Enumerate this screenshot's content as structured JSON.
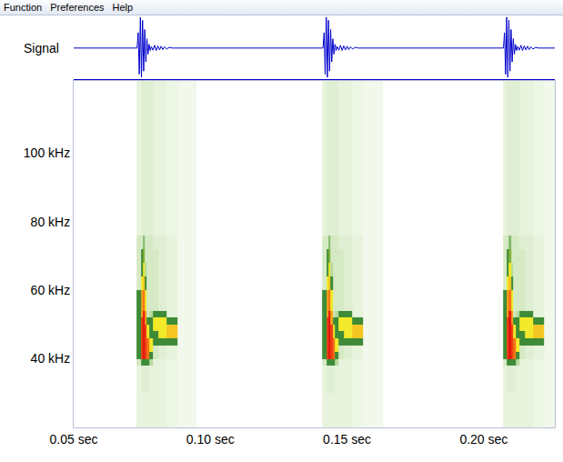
{
  "menu": [
    "Function",
    "Preferences",
    "Help"
  ],
  "chart_data": [
    {
      "type": "line",
      "ylabel": "Signal",
      "color": "#0000cc",
      "tick_labels": false,
      "xlim": [
        0.05,
        0.226
      ],
      "ylim": [
        -1,
        1
      ],
      "x": [
        0.05,
        0.0732,
        0.0736,
        0.074,
        0.0744,
        0.0748,
        0.0752,
        0.0756,
        0.076,
        0.0764,
        0.0768,
        0.0772,
        0.0776,
        0.078,
        0.0784,
        0.079,
        0.0796,
        0.0802,
        0.0808,
        0.0814,
        0.082,
        0.0826,
        0.0832,
        0.084,
        0.085,
        0.086,
        0.1412,
        0.1416,
        0.142,
        0.1424,
        0.1428,
        0.1432,
        0.1436,
        0.144,
        0.1444,
        0.1448,
        0.1452,
        0.1456,
        0.146,
        0.1464,
        0.147,
        0.1476,
        0.1482,
        0.1488,
        0.1494,
        0.15,
        0.1506,
        0.1512,
        0.152,
        0.153,
        0.154,
        0.2072,
        0.2076,
        0.208,
        0.2084,
        0.2088,
        0.2092,
        0.2096,
        0.21,
        0.2104,
        0.2108,
        0.2112,
        0.2116,
        0.212,
        0.2124,
        0.213,
        0.2136,
        0.2142,
        0.2148,
        0.2154,
        0.216,
        0.2166,
        0.2172,
        0.218,
        0.219,
        0.22,
        0.226
      ],
      "values": [
        0,
        0,
        0.5,
        -0.85,
        1,
        -0.95,
        0.9,
        -0.75,
        0.6,
        -0.45,
        0.3,
        -0.2,
        0.12,
        -0.08,
        0.05,
        -0.07,
        0.09,
        -0.08,
        0.07,
        -0.06,
        0.06,
        -0.05,
        0.04,
        -0.03,
        0.02,
        0,
        0,
        0.5,
        -0.85,
        1,
        -0.95,
        0.9,
        -0.75,
        0.6,
        -0.45,
        0.3,
        -0.2,
        0.12,
        -0.08,
        0.05,
        -0.07,
        0.09,
        -0.08,
        0.07,
        -0.06,
        0.06,
        -0.05,
        0.04,
        -0.03,
        0.02,
        0,
        0,
        0.5,
        -0.85,
        1,
        -0.95,
        0.9,
        -0.75,
        0.6,
        -0.45,
        0.3,
        -0.2,
        0.12,
        -0.08,
        0.05,
        -0.07,
        0.09,
        -0.08,
        0.07,
        -0.06,
        0.06,
        -0.05,
        0.04,
        -0.03,
        0.02,
        0,
        0
      ]
    },
    {
      "type": "heatmap",
      "xlim": [
        0.05,
        0.226
      ],
      "ylim": [
        20,
        121
      ],
      "xticks": [
        {
          "value": 0.05,
          "label": "0.05 sec"
        },
        {
          "value": 0.1,
          "label": "0.10 sec"
        },
        {
          "value": 0.15,
          "label": "0.15 sec"
        },
        {
          "value": 0.2,
          "label": "0.20 sec"
        }
      ],
      "yticks": [
        {
          "value": 40,
          "label": "40 kHz"
        },
        {
          "value": 60,
          "label": "60 kHz"
        },
        {
          "value": 80,
          "label": "80 kHz"
        },
        {
          "value": 100,
          "label": "100 kHz"
        }
      ],
      "zlim": [
        0,
        10
      ],
      "x_edges": [
        0.073,
        0.0745,
        0.0752,
        0.076,
        0.0768,
        0.0776,
        0.079,
        0.081,
        0.084,
        0.088,
        0.095,
        0.141,
        0.1425,
        0.1432,
        0.144,
        0.1448,
        0.1456,
        0.147,
        0.149,
        0.152,
        0.156,
        0.163,
        0.207,
        0.2085,
        0.2092,
        0.21,
        0.2108,
        0.2116,
        0.213,
        0.215,
        0.218,
        0.222,
        0.229
      ],
      "y_edges": [
        20,
        30,
        38,
        40,
        42,
        44,
        46,
        48,
        50,
        52,
        54,
        56,
        60,
        64,
        68,
        72,
        76,
        90,
        121
      ],
      "cells": [
        [
          1,
          1,
          1,
          1,
          1,
          1,
          1,
          1,
          0.8,
          0.6,
          null,
          1,
          1,
          1,
          1,
          1,
          1,
          1,
          1,
          0.8,
          0.6,
          null,
          1,
          1,
          1,
          1,
          1,
          1,
          1,
          1,
          0.8,
          0.6
        ],
        [
          1,
          1.2,
          1.2,
          1.2,
          1.2,
          1,
          1,
          1,
          0.8,
          0.6,
          null,
          1,
          1.2,
          1.2,
          1.2,
          1.2,
          1,
          1,
          1,
          0.8,
          0.6,
          null,
          1,
          1.2,
          1.2,
          1.2,
          1.2,
          1,
          1,
          1,
          0.8,
          0.6
        ],
        [
          1.5,
          3,
          3,
          3,
          3,
          2,
          1,
          1,
          0.8,
          0.6,
          null,
          1.5,
          3,
          3,
          3,
          3,
          2,
          1,
          1,
          0.8,
          0.6,
          null,
          1.5,
          3,
          3,
          3,
          3,
          2,
          1,
          1,
          0.8,
          0.6
        ],
        [
          3,
          9,
          10,
          9,
          8,
          3,
          1.5,
          1.2,
          1,
          0.6,
          null,
          3,
          9,
          10,
          9,
          8,
          3,
          1.5,
          1.2,
          1,
          0.6,
          null,
          3,
          9,
          10,
          9,
          8,
          3,
          1.5,
          1.2,
          1,
          0.6
        ],
        [
          3,
          9,
          10,
          9,
          8,
          5,
          1.5,
          1.2,
          1,
          0.6,
          null,
          3,
          9,
          10,
          9,
          8,
          5,
          1.5,
          1.2,
          1,
          0.6,
          null,
          3,
          9,
          10,
          9,
          8,
          5,
          1.5,
          1.2,
          1,
          0.6
        ],
        [
          3,
          9,
          10,
          9,
          8,
          5,
          3,
          3,
          3,
          0.6,
          null,
          3,
          9,
          10,
          9,
          8,
          5,
          3,
          3,
          3,
          0.6,
          null,
          3,
          9,
          10,
          9,
          8,
          5,
          3,
          3,
          3,
          0.6
        ],
        [
          3,
          9,
          10,
          9,
          5,
          3,
          3,
          5,
          6,
          0.6,
          null,
          3,
          9,
          10,
          9,
          5,
          3,
          3,
          5,
          6,
          0.6,
          null,
          3,
          9,
          10,
          9,
          5,
          3,
          3,
          5,
          6,
          0.6
        ],
        [
          3,
          9,
          10,
          9,
          5,
          3,
          5,
          5,
          6,
          0.6,
          null,
          3,
          9,
          10,
          9,
          5,
          3,
          5,
          5,
          6,
          0.6,
          null,
          3,
          9,
          10,
          9,
          5,
          3,
          5,
          5,
          6,
          0.6
        ],
        [
          3,
          9,
          10,
          7,
          3,
          3,
          5,
          5,
          3,
          0.6,
          null,
          3,
          9,
          10,
          7,
          3,
          3,
          5,
          5,
          3,
          0.6,
          null,
          3,
          9,
          10,
          7,
          3,
          3,
          5,
          5,
          3,
          0.6
        ],
        [
          3,
          7,
          10,
          7,
          1.5,
          2,
          3,
          3,
          1,
          0.6,
          null,
          3,
          7,
          10,
          7,
          1.5,
          2,
          3,
          3,
          1,
          0.6,
          null,
          3,
          7,
          10,
          7,
          1.5,
          2,
          3,
          3,
          1,
          0.6
        ],
        [
          3,
          7,
          8,
          5,
          1.5,
          1.5,
          1.5,
          1.2,
          1,
          0.6,
          null,
          3,
          7,
          8,
          5,
          1.5,
          1.5,
          1.5,
          1.2,
          1,
          0.6,
          null,
          3,
          7,
          8,
          5,
          1.5,
          1.5,
          1.5,
          1.2,
          1,
          0.6
        ],
        [
          3,
          7,
          8,
          5,
          1.5,
          1.5,
          1.5,
          1.2,
          1,
          0.6,
          null,
          3,
          7,
          8,
          5,
          1.5,
          1.5,
          1.5,
          1.2,
          1,
          0.6,
          null,
          3,
          7,
          8,
          5,
          1.5,
          1.5,
          1.5,
          1.2,
          1,
          0.6
        ],
        [
          1.5,
          5,
          6,
          3,
          1.5,
          1.5,
          1.5,
          1.2,
          1,
          0.6,
          null,
          1.5,
          5,
          6,
          3,
          1.5,
          1.5,
          1.5,
          1.2,
          1,
          0.6,
          null,
          1.5,
          5,
          6,
          3,
          1.5,
          1.5,
          1.5,
          1.2,
          1,
          0.6
        ],
        [
          1.5,
          3,
          5,
          2,
          1.5,
          1.5,
          1.5,
          1.2,
          1,
          0.6,
          null,
          1.5,
          3,
          5,
          2,
          1.5,
          1.5,
          1.5,
          1.2,
          1,
          0.6,
          null,
          1.5,
          3,
          5,
          2,
          1.5,
          1.5,
          1.5,
          1.2,
          1,
          0.6
        ],
        [
          1.5,
          3,
          3.5,
          1.5,
          1.5,
          1.5,
          1.5,
          1.2,
          1,
          0.6,
          null,
          1.5,
          3,
          3.5,
          1.5,
          1.5,
          1.5,
          1.5,
          1.2,
          1,
          0.6,
          null,
          1.5,
          3,
          3.5,
          1.5,
          1.5,
          1.5,
          1.5,
          1.2,
          1,
          0.6
        ],
        [
          1.5,
          1.5,
          2.5,
          1.5,
          1.5,
          1.5,
          1.2,
          1.2,
          1,
          0.6,
          null,
          1.5,
          1.5,
          2.5,
          1.5,
          1.5,
          1.5,
          1.2,
          1.2,
          1,
          0.6,
          null,
          1.5,
          1.5,
          2.5,
          1.5,
          1.5,
          1.5,
          1.2,
          1.2,
          1,
          0.6
        ],
        [
          1,
          1.2,
          1.2,
          1.2,
          1.2,
          1.2,
          1,
          1,
          0.8,
          0.6,
          null,
          1,
          1.2,
          1.2,
          1.2,
          1.2,
          1.2,
          1,
          1,
          0.8,
          0.6,
          null,
          1,
          1.2,
          1.2,
          1.2,
          1.2,
          1.2,
          1,
          1,
          0.8,
          0.6
        ],
        [
          1,
          1.2,
          1.2,
          1.2,
          1.2,
          1.2,
          1,
          1,
          0.8,
          0.6,
          null,
          1,
          1.2,
          1.2,
          1.2,
          1.2,
          1.2,
          1,
          1,
          0.8,
          0.6,
          null,
          1,
          1.2,
          1.2,
          1.2,
          1.2,
          1.2,
          1,
          1,
          0.8,
          0.6
        ]
      ]
    }
  ]
}
